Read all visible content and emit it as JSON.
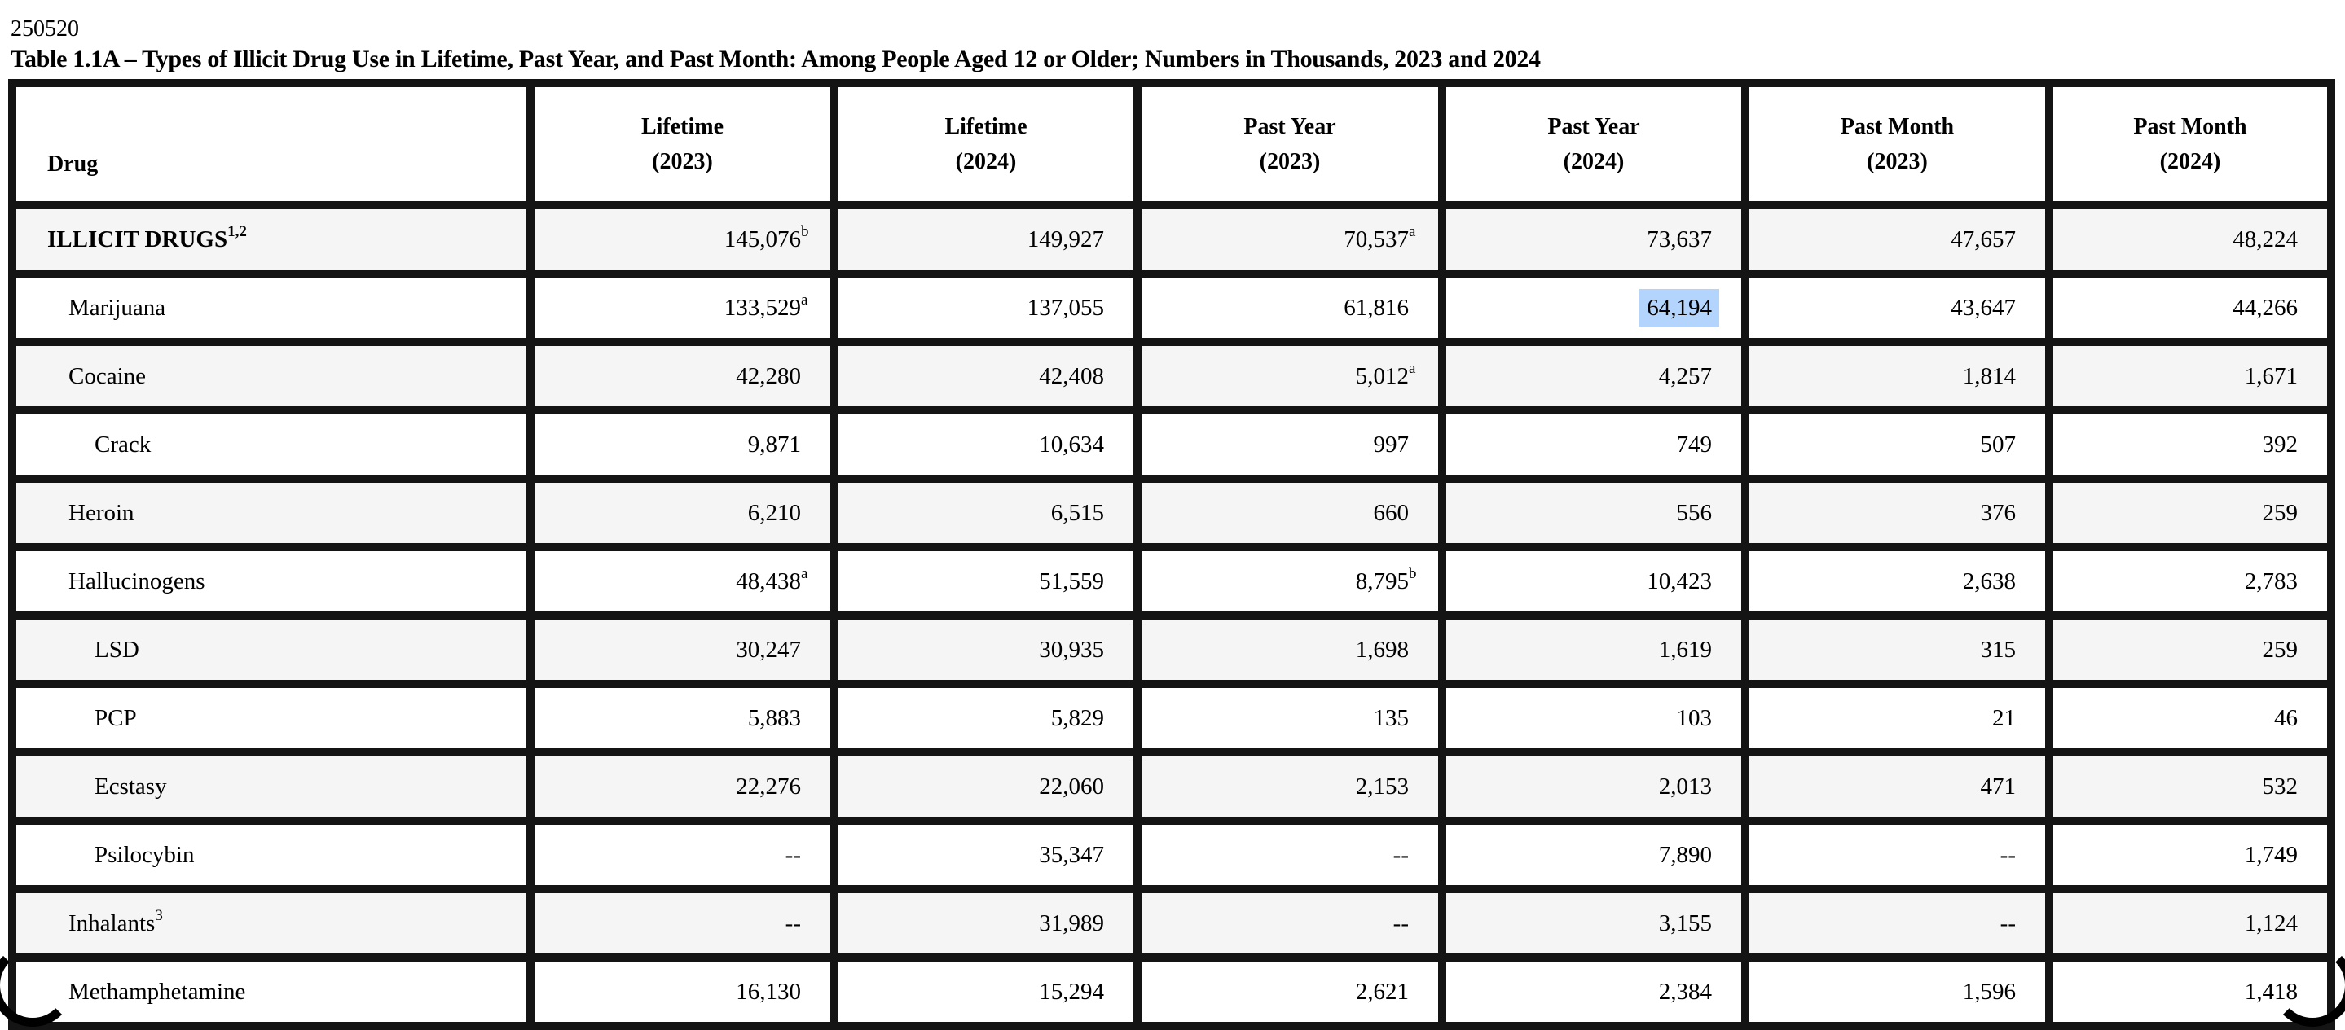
{
  "page": {
    "doc_number": "250520",
    "title": "Table 1.1A – Types of Illicit Drug Use in Lifetime, Past Year, and Past Month: Among People Aged 12 or Older; Numbers in Thousands, 2023 and 2024"
  },
  "colors": {
    "border": "#141414",
    "shaded_row": "#f5f5f5",
    "selection_highlight": "#b3d4fc"
  },
  "table": {
    "columns": [
      {
        "line1": "Drug",
        "line2": ""
      },
      {
        "line1": "Lifetime",
        "line2": "(2023)"
      },
      {
        "line1": "Lifetime",
        "line2": "(2024)"
      },
      {
        "line1": "Past Year",
        "line2": "(2023)"
      },
      {
        "line1": "Past Year",
        "line2": "(2024)"
      },
      {
        "line1": "Past Month",
        "line2": "(2023)"
      },
      {
        "line1": "Past Month",
        "line2": "(2024)"
      }
    ],
    "rows": [
      {
        "label": "ILLICIT DRUGS",
        "label_sup": "1,2",
        "indent": 0,
        "bold": true,
        "shaded": true,
        "cells": [
          {
            "v": "145,076",
            "sup": "b"
          },
          {
            "v": "149,927"
          },
          {
            "v": "70,537",
            "sup": "a"
          },
          {
            "v": "73,637"
          },
          {
            "v": "47,657"
          },
          {
            "v": "48,224"
          }
        ]
      },
      {
        "label": "Marijuana",
        "indent": 1,
        "bold": false,
        "shaded": false,
        "cells": [
          {
            "v": "133,529",
            "sup": "a"
          },
          {
            "v": "137,055"
          },
          {
            "v": "61,816"
          },
          {
            "v": "64,194",
            "selected": true
          },
          {
            "v": "43,647"
          },
          {
            "v": "44,266"
          }
        ]
      },
      {
        "label": "Cocaine",
        "indent": 1,
        "bold": false,
        "shaded": true,
        "cells": [
          {
            "v": "42,280"
          },
          {
            "v": "42,408"
          },
          {
            "v": "5,012",
            "sup": "a"
          },
          {
            "v": "4,257"
          },
          {
            "v": "1,814"
          },
          {
            "v": "1,671"
          }
        ]
      },
      {
        "label": "Crack",
        "indent": 2,
        "bold": false,
        "shaded": false,
        "cells": [
          {
            "v": "9,871"
          },
          {
            "v": "10,634"
          },
          {
            "v": "997"
          },
          {
            "v": "749"
          },
          {
            "v": "507"
          },
          {
            "v": "392"
          }
        ]
      },
      {
        "label": "Heroin",
        "indent": 1,
        "bold": false,
        "shaded": true,
        "cells": [
          {
            "v": "6,210"
          },
          {
            "v": "6,515"
          },
          {
            "v": "660"
          },
          {
            "v": "556"
          },
          {
            "v": "376"
          },
          {
            "v": "259"
          }
        ]
      },
      {
        "label": "Hallucinogens",
        "indent": 1,
        "bold": false,
        "shaded": false,
        "cells": [
          {
            "v": "48,438",
            "sup": "a"
          },
          {
            "v": "51,559"
          },
          {
            "v": "8,795",
            "sup": "b"
          },
          {
            "v": "10,423"
          },
          {
            "v": "2,638"
          },
          {
            "v": "2,783"
          }
        ]
      },
      {
        "label": "LSD",
        "indent": 2,
        "bold": false,
        "shaded": true,
        "cells": [
          {
            "v": "30,247"
          },
          {
            "v": "30,935"
          },
          {
            "v": "1,698"
          },
          {
            "v": "1,619"
          },
          {
            "v": "315"
          },
          {
            "v": "259"
          }
        ]
      },
      {
        "label": "PCP",
        "indent": 2,
        "bold": false,
        "shaded": false,
        "cells": [
          {
            "v": "5,883"
          },
          {
            "v": "5,829"
          },
          {
            "v": "135"
          },
          {
            "v": "103"
          },
          {
            "v": "21"
          },
          {
            "v": "46"
          }
        ]
      },
      {
        "label": "Ecstasy",
        "indent": 2,
        "bold": false,
        "shaded": true,
        "cells": [
          {
            "v": "22,276"
          },
          {
            "v": "22,060"
          },
          {
            "v": "2,153"
          },
          {
            "v": "2,013"
          },
          {
            "v": "471"
          },
          {
            "v": "532"
          }
        ]
      },
      {
        "label": "Psilocybin",
        "indent": 2,
        "bold": false,
        "shaded": false,
        "cells": [
          {
            "v": "--"
          },
          {
            "v": "35,347"
          },
          {
            "v": "--"
          },
          {
            "v": "7,890"
          },
          {
            "v": "--"
          },
          {
            "v": "1,749"
          }
        ]
      },
      {
        "label": "Inhalants",
        "label_sup": "3",
        "indent": 1,
        "bold": false,
        "shaded": true,
        "cells": [
          {
            "v": "--"
          },
          {
            "v": "31,989"
          },
          {
            "v": "--"
          },
          {
            "v": "3,155"
          },
          {
            "v": "--"
          },
          {
            "v": "1,124"
          }
        ]
      },
      {
        "label": "Methamphetamine",
        "indent": 1,
        "bold": false,
        "shaded": false,
        "cells": [
          {
            "v": "16,130"
          },
          {
            "v": "15,294"
          },
          {
            "v": "2,621"
          },
          {
            "v": "2,384"
          },
          {
            "v": "1,596"
          },
          {
            "v": "1,418"
          }
        ]
      }
    ]
  }
}
